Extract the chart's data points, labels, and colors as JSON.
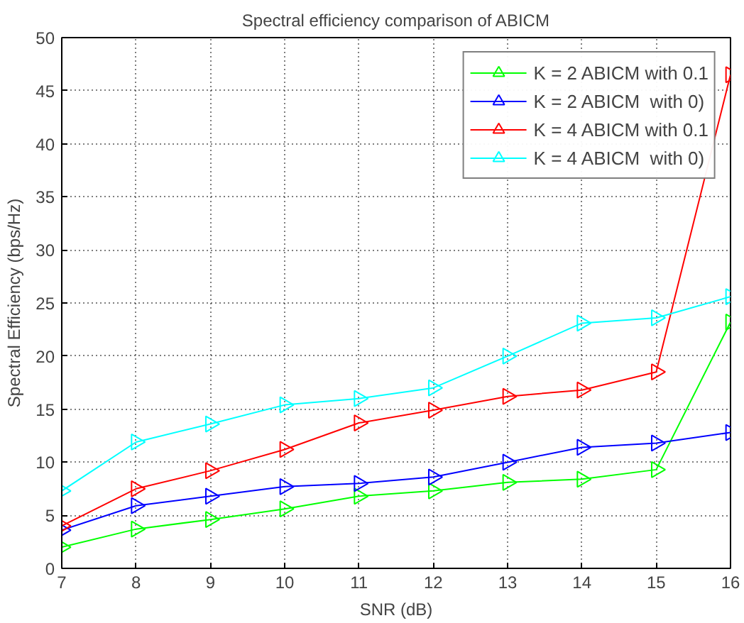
{
  "chart_data": {
    "type": "line",
    "title": "Spectral efficiency comparison of ABICM",
    "xlabel": "SNR (dB)",
    "ylabel": "Spectral Efficiency (bps/Hz)",
    "x": [
      7,
      8,
      9,
      10,
      11,
      12,
      13,
      14,
      15,
      16
    ],
    "series": [
      {
        "name": "K = 2 ABICM with 0.1",
        "color": "#00ff00",
        "values": [
          2.0,
          3.7,
          4.6,
          5.6,
          6.8,
          7.3,
          8.1,
          8.4,
          9.3,
          23.2
        ]
      },
      {
        "name": "K = 2 ABICM  with 0)",
        "color": "#0000ff",
        "values": [
          3.6,
          5.9,
          6.8,
          7.7,
          8.0,
          8.6,
          10.0,
          11.4,
          11.8,
          12.8
        ]
      },
      {
        "name": "K = 4 ABICM with 0.1",
        "color": "#ff0000",
        "values": [
          4.0,
          7.5,
          9.2,
          11.2,
          13.7,
          14.9,
          16.2,
          16.8,
          18.5,
          46.5
        ]
      },
      {
        "name": "K = 4 ABICM  with 0)",
        "color": "#00ffff",
        "values": [
          7.3,
          11.9,
          13.6,
          15.4,
          16.0,
          17.0,
          20.0,
          23.1,
          23.6,
          25.6
        ]
      }
    ],
    "xlim": [
      7,
      16
    ],
    "ylim": [
      0,
      50
    ],
    "xticks": [
      7,
      8,
      9,
      10,
      11,
      12,
      13,
      14,
      15,
      16
    ],
    "yticks": [
      0,
      5,
      10,
      15,
      20,
      25,
      30,
      35,
      40,
      45,
      50
    ],
    "grid": true,
    "legend": "top right",
    "marker": "triangle",
    "line_style": "solid"
  }
}
